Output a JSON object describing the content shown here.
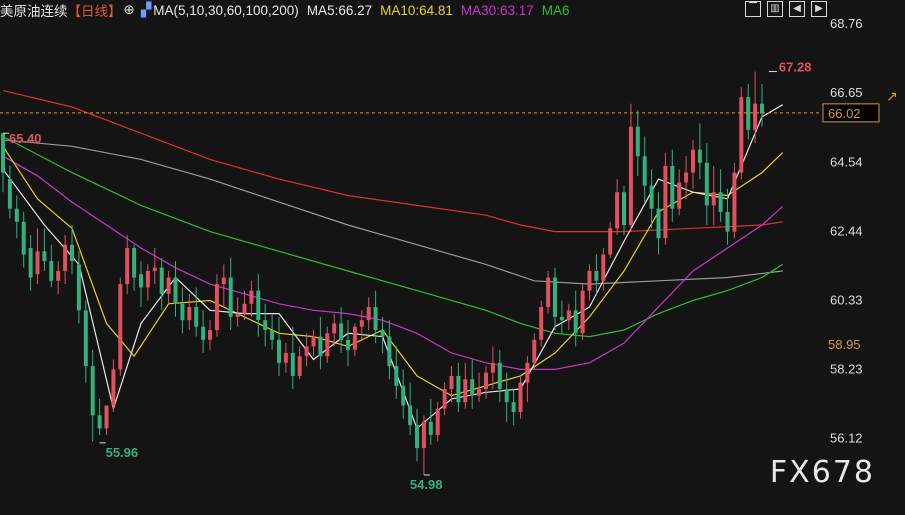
{
  "legend": {
    "instrument": "美原油连续",
    "period": "【日线】",
    "ma_config": "MA(5,10,30,60,100,200)",
    "ma5": "MA5:66.27",
    "ma10": "MA10:64.81",
    "ma30": "MA30:63.17",
    "ma60": "MA6"
  },
  "colors": {
    "background": "#141414",
    "up": "#e0505e",
    "down": "#34b07e",
    "ma5": "#e8e8e8",
    "ma10": "#e8d21e",
    "ma30": "#cc33cc",
    "ma60": "#2ebc2e",
    "ma100": "#9a9a9a",
    "ma200": "#e03030",
    "price_line": "#d69a3a"
  },
  "watermark": "FX678",
  "chart_data": {
    "type": "candlestick",
    "ylim": [
      54.5,
      69.5
    ],
    "y_ticks": [
      "68.76",
      "66.65",
      "64.54",
      "62.44",
      "60.33",
      "58.23",
      "56.12"
    ],
    "last_price_label": "66.02",
    "last_price": 66.02,
    "mark_label": "58.95",
    "annotations": [
      {
        "label": "67.28",
        "value": 67.28
      },
      {
        "label": "65.40",
        "value": 65.4
      },
      {
        "label": "55.96",
        "value": 55.96
      },
      {
        "label": "54.98",
        "value": 54.98
      }
    ],
    "candles": [
      [
        65.4,
        65.1,
        64.2,
        63.6
      ],
      [
        64.0,
        64.4,
        63.1,
        62.8
      ],
      [
        63.1,
        63.5,
        62.7,
        62.2
      ],
      [
        62.7,
        63.0,
        61.7,
        61.3
      ],
      [
        61.9,
        62.3,
        61.0,
        60.6
      ],
      [
        61.1,
        62.5,
        61.8,
        60.8
      ],
      [
        61.8,
        62.5,
        61.5,
        61.2
      ],
      [
        61.5,
        62.0,
        60.9,
        60.7
      ],
      [
        60.9,
        61.5,
        61.2,
        60.5
      ],
      [
        61.2,
        62.3,
        62.0,
        60.8
      ],
      [
        62.0,
        62.6,
        61.5,
        61.1
      ],
      [
        61.4,
        61.8,
        60.0,
        59.6
      ],
      [
        60.0,
        60.3,
        58.3,
        57.8
      ],
      [
        58.3,
        58.8,
        56.8,
        56.0
      ],
      [
        56.8,
        57.3,
        56.4,
        56.2
      ],
      [
        56.4,
        57.0,
        57.1,
        56.2
      ],
      [
        57.1,
        58.5,
        58.2,
        56.9
      ],
      [
        58.2,
        61.0,
        60.8,
        58.0
      ],
      [
        60.8,
        62.3,
        61.9,
        60.5
      ],
      [
        61.9,
        62.0,
        61.0,
        60.6
      ],
      [
        61.1,
        61.5,
        60.7,
        60.1
      ],
      [
        60.7,
        61.4,
        61.2,
        60.3
      ],
      [
        61.2,
        61.9,
        61.3,
        60.8
      ],
      [
        61.3,
        61.6,
        60.5,
        60.0
      ],
      [
        60.5,
        61.2,
        61.0,
        60.2
      ],
      [
        61.0,
        61.5,
        60.2,
        59.8
      ],
      [
        60.2,
        60.7,
        59.7,
        59.3
      ],
      [
        59.7,
        60.5,
        60.1,
        59.4
      ],
      [
        60.1,
        60.7,
        59.5,
        59.2
      ],
      [
        59.5,
        60.0,
        59.1,
        58.7
      ],
      [
        59.1,
        59.7,
        59.4,
        58.8
      ],
      [
        59.4,
        61.1,
        60.8,
        59.2
      ],
      [
        60.8,
        61.4,
        61.0,
        60.1
      ],
      [
        61.0,
        61.6,
        59.8,
        59.4
      ],
      [
        59.8,
        60.4,
        59.9,
        59.5
      ],
      [
        59.9,
        60.6,
        60.2,
        59.7
      ],
      [
        60.2,
        60.9,
        60.6,
        59.8
      ],
      [
        60.6,
        61.1,
        59.7,
        59.2
      ],
      [
        59.7,
        60.2,
        59.4,
        58.9
      ],
      [
        59.4,
        59.9,
        59.1,
        58.8
      ],
      [
        59.1,
        59.8,
        58.4,
        58.0
      ],
      [
        58.4,
        59.0,
        58.7,
        58.1
      ],
      [
        58.7,
        59.5,
        58.0,
        57.6
      ],
      [
        58.0,
        58.9,
        58.6,
        57.9
      ],
      [
        58.6,
        59.3,
        58.9,
        58.3
      ],
      [
        58.9,
        59.4,
        59.2,
        58.6
      ],
      [
        59.2,
        59.8,
        58.6,
        58.2
      ],
      [
        58.6,
        59.5,
        59.3,
        58.4
      ],
      [
        59.3,
        59.9,
        59.6,
        58.9
      ],
      [
        59.6,
        60.1,
        59.1,
        58.7
      ],
      [
        59.1,
        59.7,
        58.8,
        58.3
      ],
      [
        58.8,
        59.6,
        59.5,
        58.6
      ],
      [
        59.5,
        60.0,
        59.7,
        59.1
      ],
      [
        59.7,
        60.4,
        60.1,
        59.4
      ],
      [
        60.1,
        60.6,
        59.4,
        59.0
      ],
      [
        59.4,
        59.8,
        59.2,
        58.7
      ],
      [
        59.2,
        59.7,
        58.3,
        57.9
      ],
      [
        58.3,
        58.9,
        57.7,
        57.3
      ],
      [
        57.7,
        58.2,
        57.1,
        56.7
      ],
      [
        57.1,
        57.8,
        56.5,
        56.2
      ],
      [
        56.5,
        57.0,
        55.8,
        55.4
      ],
      [
        55.8,
        56.8,
        56.6,
        54.98
      ],
      [
        56.6,
        57.3,
        56.2,
        55.9
      ],
      [
        56.2,
        57.2,
        57.0,
        56.0
      ],
      [
        57.0,
        57.8,
        57.6,
        56.8
      ],
      [
        57.6,
        58.3,
        58.0,
        57.2
      ],
      [
        58.0,
        58.4,
        57.2,
        56.9
      ],
      [
        57.2,
        58.4,
        57.9,
        57.0
      ],
      [
        57.9,
        58.5,
        57.4,
        57.0
      ],
      [
        57.4,
        58.1,
        57.6,
        57.2
      ],
      [
        57.6,
        58.3,
        58.1,
        57.3
      ],
      [
        58.1,
        58.9,
        58.4,
        57.6
      ],
      [
        58.4,
        58.8,
        57.6,
        57.2
      ],
      [
        57.6,
        58.1,
        57.2,
        56.6
      ],
      [
        57.2,
        57.6,
        56.9,
        56.5
      ],
      [
        56.9,
        58.0,
        57.8,
        56.7
      ],
      [
        57.8,
        58.6,
        58.4,
        57.2
      ],
      [
        58.4,
        59.3,
        59.1,
        58.2
      ],
      [
        59.1,
        60.3,
        60.1,
        58.9
      ],
      [
        60.1,
        61.2,
        61.0,
        59.9
      ],
      [
        61.0,
        61.3,
        59.8,
        59.4
      ],
      [
        59.8,
        60.3,
        59.7,
        59.3
      ],
      [
        59.7,
        60.2,
        60.0,
        59.4
      ],
      [
        60.0,
        60.6,
        59.3,
        58.9
      ],
      [
        59.3,
        60.8,
        60.6,
        59.1
      ],
      [
        60.6,
        61.4,
        61.2,
        60.3
      ],
      [
        61.2,
        61.7,
        60.9,
        60.5
      ],
      [
        60.9,
        61.9,
        61.7,
        60.6
      ],
      [
        61.7,
        62.7,
        62.5,
        61.6
      ],
      [
        62.5,
        64.0,
        63.6,
        62.3
      ],
      [
        63.6,
        63.8,
        62.6,
        62.3
      ],
      [
        62.6,
        66.3,
        65.6,
        62.4
      ],
      [
        65.6,
        66.1,
        64.7,
        64.1
      ],
      [
        64.7,
        65.3,
        63.8,
        63.3
      ],
      [
        63.8,
        64.3,
        63.1,
        62.5
      ],
      [
        63.1,
        63.6,
        62.2,
        61.7
      ],
      [
        62.2,
        64.8,
        64.4,
        62.0
      ],
      [
        64.4,
        64.9,
        63.1,
        62.7
      ],
      [
        63.1,
        64.3,
        63.9,
        62.9
      ],
      [
        63.9,
        64.7,
        64.2,
        63.4
      ],
      [
        64.2,
        65.2,
        64.9,
        63.7
      ],
      [
        64.9,
        65.7,
        64.5,
        64.0
      ],
      [
        64.5,
        65.1,
        63.2,
        62.6
      ],
      [
        63.2,
        64.4,
        63.6,
        62.6
      ],
      [
        63.6,
        64.3,
        63.0,
        62.7
      ],
      [
        63.0,
        63.7,
        62.4,
        62.0
      ],
      [
        62.4,
        64.5,
        64.2,
        62.2
      ],
      [
        64.2,
        66.8,
        66.5,
        64.0
      ],
      [
        66.5,
        66.9,
        65.5,
        65.2
      ],
      [
        65.5,
        67.28,
        66.3,
        65.1
      ],
      [
        66.3,
        66.9,
        66.0,
        65.6
      ]
    ],
    "ma5": [
      [
        0,
        64.3
      ],
      [
        6,
        62.6
      ],
      [
        11,
        61.4
      ],
      [
        16,
        57.0
      ],
      [
        20,
        59.6
      ],
      [
        25,
        61.0
      ],
      [
        30,
        60.0
      ],
      [
        35,
        59.9
      ],
      [
        40,
        59.9
      ],
      [
        45,
        58.5
      ],
      [
        50,
        59.3
      ],
      [
        55,
        59.2
      ],
      [
        60,
        56.4
      ],
      [
        65,
        57.3
      ],
      [
        70,
        57.5
      ],
      [
        75,
        57.6
      ],
      [
        80,
        59.5
      ],
      [
        85,
        60.1
      ],
      [
        90,
        62.1
      ],
      [
        95,
        64.0
      ],
      [
        100,
        63.6
      ],
      [
        105,
        63.4
      ],
      [
        110,
        65.9
      ],
      [
        113,
        66.27
      ]
    ],
    "ma10": [
      [
        0,
        65.0
      ],
      [
        5,
        63.4
      ],
      [
        10,
        62.5
      ],
      [
        15,
        59.6
      ],
      [
        19,
        58.6
      ],
      [
        24,
        60.2
      ],
      [
        30,
        60.3
      ],
      [
        35,
        59.8
      ],
      [
        40,
        59.3
      ],
      [
        45,
        59.2
      ],
      [
        50,
        58.9
      ],
      [
        55,
        59.4
      ],
      [
        60,
        58.0
      ],
      [
        65,
        57.4
      ],
      [
        70,
        57.7
      ],
      [
        75,
        58.0
      ],
      [
        80,
        58.7
      ],
      [
        85,
        59.8
      ],
      [
        90,
        61.2
      ],
      [
        95,
        63.0
      ],
      [
        100,
        63.6
      ],
      [
        105,
        63.5
      ],
      [
        110,
        64.2
      ],
      [
        113,
        64.81
      ]
    ],
    "ma30": [
      [
        0,
        64.7
      ],
      [
        5,
        64.1
      ],
      [
        10,
        63.3
      ],
      [
        15,
        62.6
      ],
      [
        20,
        61.9
      ],
      [
        25,
        61.3
      ],
      [
        30,
        60.8
      ],
      [
        35,
        60.5
      ],
      [
        40,
        60.2
      ],
      [
        45,
        60.0
      ],
      [
        50,
        59.9
      ],
      [
        55,
        59.7
      ],
      [
        60,
        59.3
      ],
      [
        65,
        58.7
      ],
      [
        70,
        58.4
      ],
      [
        75,
        58.2
      ],
      [
        80,
        58.2
      ],
      [
        85,
        58.4
      ],
      [
        90,
        59.0
      ],
      [
        95,
        60.1
      ],
      [
        100,
        61.2
      ],
      [
        105,
        61.9
      ],
      [
        110,
        62.6
      ],
      [
        113,
        63.17
      ]
    ],
    "ma60": [
      [
        0,
        65.3
      ],
      [
        10,
        64.2
      ],
      [
        20,
        63.2
      ],
      [
        30,
        62.4
      ],
      [
        40,
        61.8
      ],
      [
        50,
        61.2
      ],
      [
        60,
        60.6
      ],
      [
        70,
        60.0
      ],
      [
        75,
        59.6
      ],
      [
        80,
        59.3
      ],
      [
        85,
        59.2
      ],
      [
        90,
        59.4
      ],
      [
        95,
        59.9
      ],
      [
        100,
        60.3
      ],
      [
        105,
        60.6
      ],
      [
        110,
        61.0
      ],
      [
        113,
        61.4
      ]
    ],
    "ma100": [
      [
        0,
        65.2
      ],
      [
        10,
        65.0
      ],
      [
        20,
        64.6
      ],
      [
        30,
        64.0
      ],
      [
        40,
        63.3
      ],
      [
        50,
        62.6
      ],
      [
        60,
        62.0
      ],
      [
        70,
        61.4
      ],
      [
        77,
        60.9
      ],
      [
        85,
        60.8
      ],
      [
        95,
        60.9
      ],
      [
        105,
        61.0
      ],
      [
        113,
        61.2
      ]
    ],
    "ma200": [
      [
        0,
        66.7
      ],
      [
        10,
        66.2
      ],
      [
        20,
        65.4
      ],
      [
        30,
        64.6
      ],
      [
        40,
        64.0
      ],
      [
        50,
        63.5
      ],
      [
        60,
        63.2
      ],
      [
        70,
        62.9
      ],
      [
        75,
        62.6
      ],
      [
        80,
        62.4
      ],
      [
        90,
        62.4
      ],
      [
        100,
        62.5
      ],
      [
        110,
        62.6
      ],
      [
        113,
        62.7
      ]
    ]
  }
}
